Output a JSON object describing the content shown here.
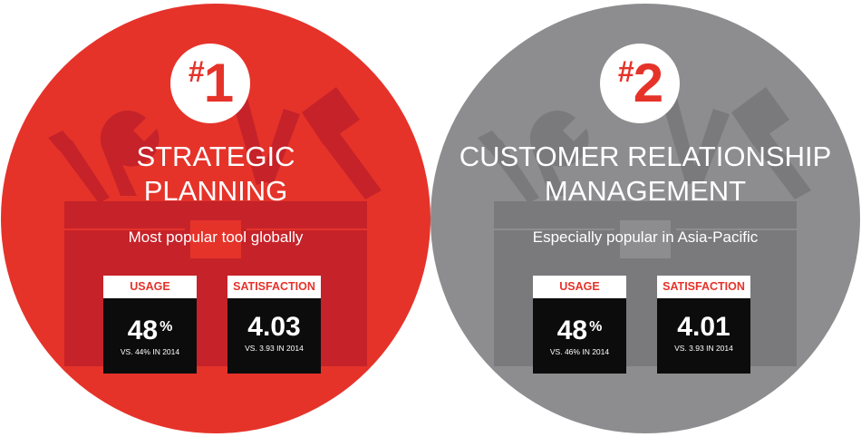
{
  "colors": {
    "card1_background": "#e5332a",
    "card1_tools": "#c62229",
    "card2_background": "#8d8d8f",
    "card2_tools": "#7a7a7c",
    "accent_red": "#e5332a",
    "stat_box": "#0c0c0c"
  },
  "cards": [
    {
      "rank_hash": "#",
      "rank_number": "1",
      "title_line1": "STRATEGIC",
      "title_line2": "PLANNING",
      "subtitle": "Most popular tool globally",
      "usage_label": "USAGE",
      "usage_value": "48",
      "usage_unit": "%",
      "usage_compare": "VS. 44% IN 2014",
      "satisfaction_label": "SATISFACTION",
      "satisfaction_value": "4.03",
      "satisfaction_compare": "VS. 3.93 IN 2014",
      "icon": "toolbox-icon"
    },
    {
      "rank_hash": "#",
      "rank_number": "2",
      "title_line1": "CUSTOMER RELATIONSHIP",
      "title_line2": "MANAGEMENT",
      "subtitle": "Especially popular in Asia-Pacific",
      "usage_label": "USAGE",
      "usage_value": "48",
      "usage_unit": "%",
      "usage_compare": "VS. 46% IN 2014",
      "satisfaction_label": "SATISFACTION",
      "satisfaction_value": "4.01",
      "satisfaction_compare": "VS. 3.93 IN 2014",
      "icon": "toolbox-icon"
    }
  ]
}
